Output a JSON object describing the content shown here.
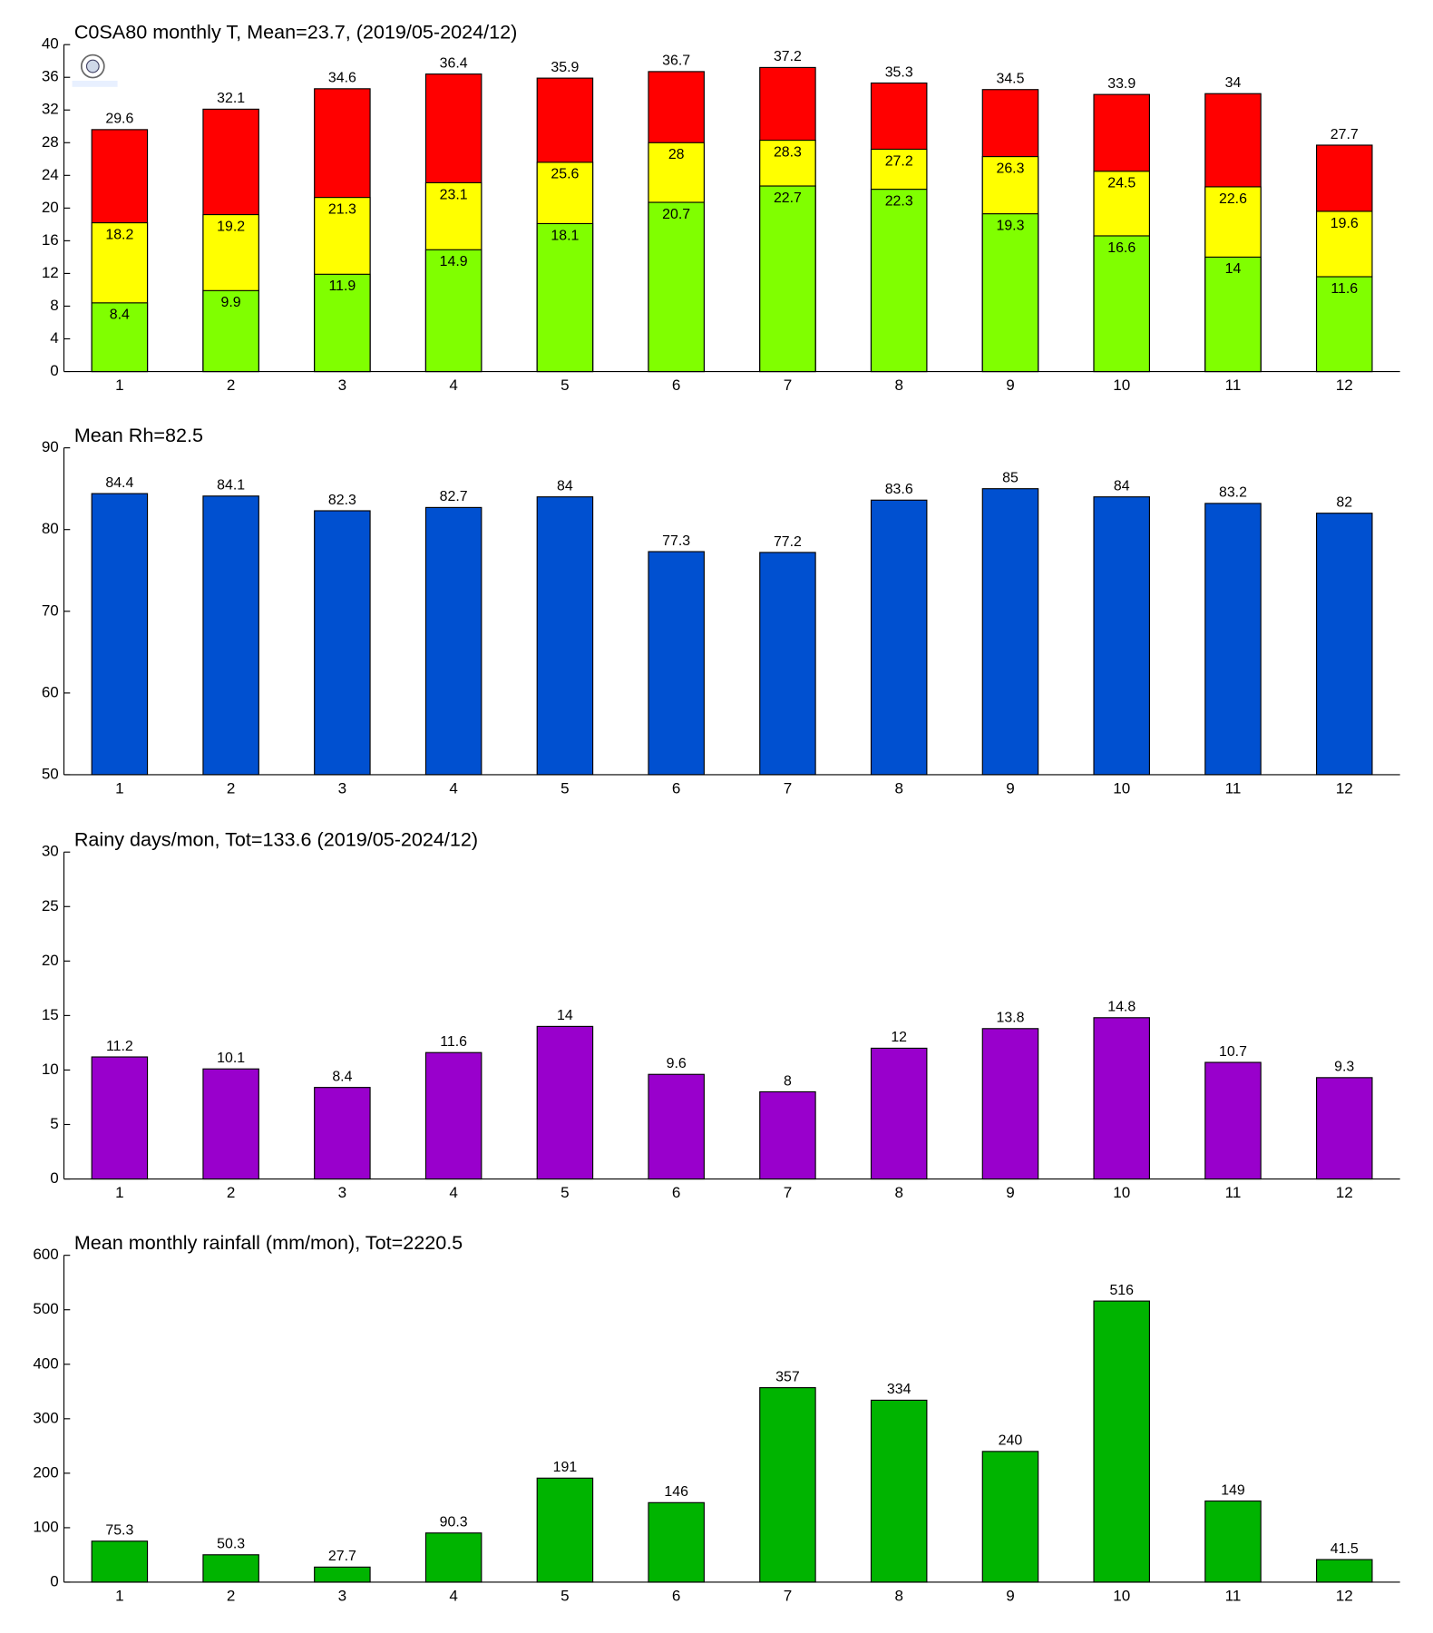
{
  "chart_data": [
    {
      "type": "bar",
      "title": "C0SA80 monthly T, Mean=23.7, (2019/05-2024/12)",
      "categories": [
        "1",
        "2",
        "3",
        "4",
        "5",
        "6",
        "7",
        "8",
        "9",
        "10",
        "11",
        "12"
      ],
      "series": [
        {
          "color": "#ff0000",
          "label_position": "above",
          "values": [
            29.6,
            32.1,
            34.6,
            36.4,
            35.9,
            36.7,
            37.2,
            35.3,
            34.5,
            33.9,
            34,
            27.7
          ]
        },
        {
          "color": "#ffff00",
          "label_position": "inside",
          "values": [
            18.2,
            19.2,
            21.3,
            23.1,
            25.6,
            28,
            28.3,
            27.2,
            26.3,
            24.5,
            22.6,
            19.6
          ]
        },
        {
          "color": "#80ff00",
          "label_position": "inside",
          "values": [
            8.4,
            9.9,
            11.9,
            14.9,
            18.1,
            20.7,
            22.7,
            22.3,
            19.3,
            16.6,
            14,
            11.6
          ]
        }
      ],
      "ylim": [
        0,
        40
      ],
      "yticks": [
        0,
        4,
        8,
        12,
        16,
        20,
        24,
        28,
        32,
        36,
        40
      ]
    },
    {
      "type": "bar",
      "title": "Mean Rh=82.5",
      "categories": [
        "1",
        "2",
        "3",
        "4",
        "5",
        "6",
        "7",
        "8",
        "9",
        "10",
        "11",
        "12"
      ],
      "series": [
        {
          "color": "#0050d0",
          "label_position": "above",
          "values": [
            84.4,
            84.1,
            82.3,
            82.7,
            84,
            77.3,
            77.2,
            83.6,
            85,
            84,
            83.2,
            82
          ]
        }
      ],
      "ylim": [
        50,
        90
      ],
      "yticks": [
        50,
        60,
        70,
        80,
        90
      ]
    },
    {
      "type": "bar",
      "title": "Rainy days/mon, Tot=133.6 (2019/05-2024/12)",
      "categories": [
        "1",
        "2",
        "3",
        "4",
        "5",
        "6",
        "7",
        "8",
        "9",
        "10",
        "11",
        "12"
      ],
      "series": [
        {
          "color": "#9900cc",
          "label_position": "above",
          "values": [
            11.2,
            10.1,
            8.4,
            11.6,
            14,
            9.6,
            8,
            12,
            13.8,
            14.8,
            10.7,
            9.3
          ]
        }
      ],
      "ylim": [
        0,
        30
      ],
      "yticks": [
        0,
        5,
        10,
        15,
        20,
        25,
        30
      ]
    },
    {
      "type": "bar",
      "title": "Mean monthly rainfall (mm/mon), Tot=2220.5",
      "categories": [
        "1",
        "2",
        "3",
        "4",
        "5",
        "6",
        "7",
        "8",
        "9",
        "10",
        "11",
        "12"
      ],
      "series": [
        {
          "color": "#00b400",
          "label_position": "above",
          "values": [
            75.3,
            50.3,
            27.7,
            90.3,
            191,
            146,
            357,
            334,
            240,
            516,
            149,
            41.5
          ]
        }
      ],
      "ylim": [
        0,
        600
      ],
      "yticks": [
        0,
        100,
        200,
        300,
        400,
        500,
        600
      ]
    }
  ]
}
